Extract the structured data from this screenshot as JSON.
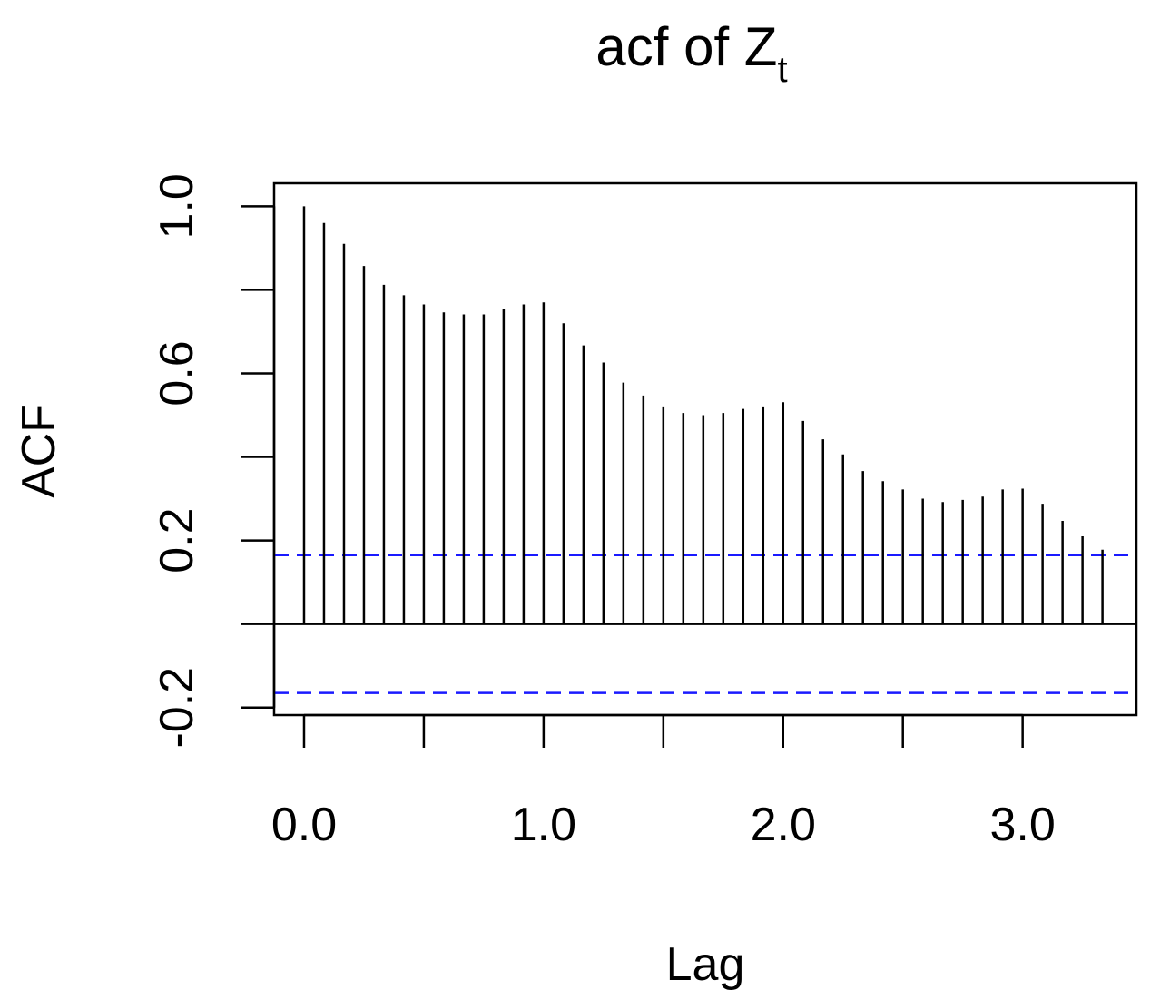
{
  "chart_data": {
    "type": "bar",
    "title_main": "acf of Z",
    "title_subscript": "t",
    "xlabel": "Lag",
    "ylabel": "ACF",
    "xlim": [
      -0.125,
      3.475
    ],
    "ylim": [
      -0.218,
      1.055
    ],
    "x_ticks": [
      0.0,
      0.5,
      1.0,
      1.5,
      2.0,
      2.5,
      3.0
    ],
    "x_tick_labels": [
      "0.0",
      "",
      "1.0",
      "",
      "2.0",
      "",
      "3.0"
    ],
    "y_ticks": [
      -0.2,
      0.0,
      0.2,
      0.4,
      0.6,
      0.8,
      1.0
    ],
    "y_tick_labels": [
      "-0.2",
      "",
      "0.2",
      "",
      "0.6",
      "",
      "1.0"
    ],
    "confidence_bounds": [
      0.165,
      -0.165
    ],
    "bound_color": "#1a1aff",
    "lags": [
      0.0,
      0.0833,
      0.1667,
      0.25,
      0.3333,
      0.4167,
      0.5,
      0.5833,
      0.6667,
      0.75,
      0.8333,
      0.9167,
      1.0,
      1.0833,
      1.1667,
      1.25,
      1.3333,
      1.4167,
      1.5,
      1.5833,
      1.6667,
      1.75,
      1.8333,
      1.9167,
      2.0,
      2.0833,
      2.1667,
      2.25,
      2.3333,
      2.4167,
      2.5,
      2.5833,
      2.6667,
      2.75,
      2.8333,
      2.9167,
      3.0,
      3.0833,
      3.1667,
      3.25,
      3.3333
    ],
    "values": [
      1.0,
      0.96,
      0.91,
      0.857,
      0.812,
      0.787,
      0.765,
      0.746,
      0.741,
      0.741,
      0.753,
      0.765,
      0.77,
      0.72,
      0.667,
      0.626,
      0.578,
      0.547,
      0.521,
      0.505,
      0.5,
      0.505,
      0.515,
      0.521,
      0.531,
      0.486,
      0.442,
      0.406,
      0.366,
      0.342,
      0.322,
      0.3,
      0.292,
      0.297,
      0.305,
      0.322,
      0.324,
      0.288,
      0.247,
      0.21,
      0.178
    ]
  }
}
